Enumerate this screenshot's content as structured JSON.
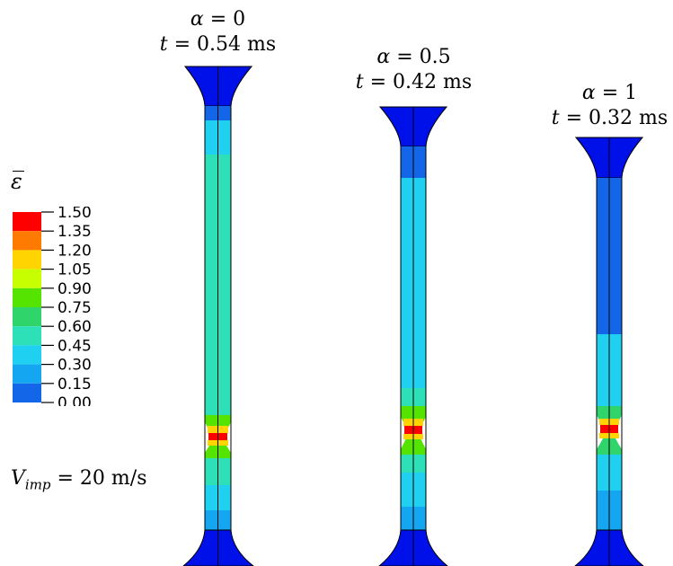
{
  "legend": {
    "symbol": "ε",
    "ticks": [
      "1.50",
      "1.35",
      "1.20",
      "1.05",
      "0.90",
      "0.75",
      "0.60",
      "0.45",
      "0.30",
      "0.15",
      "0.00"
    ],
    "colors": [
      "#ff0000",
      "#ff7a00",
      "#ffd400",
      "#c8ff00",
      "#54e400",
      "#2fd46a",
      "#2ee0b8",
      "#1fd0f0",
      "#14a6f0",
      "#1466e8",
      "#0010e8"
    ]
  },
  "impact": {
    "var": "V",
    "sub": "imp",
    "value": " = 20 m/s"
  },
  "specimens": [
    {
      "alpha_var": "α",
      "alpha_value": " = 0",
      "t_var": "t",
      "t_value": " = 0.54 ms"
    },
    {
      "alpha_var": "α",
      "alpha_value": " = 0.5",
      "t_var": "t",
      "t_value": " = 0.42 ms"
    },
    {
      "alpha_var": "α",
      "alpha_value": " = 1",
      "t_var": "t",
      "t_value": " = 0.32 ms"
    }
  ]
}
